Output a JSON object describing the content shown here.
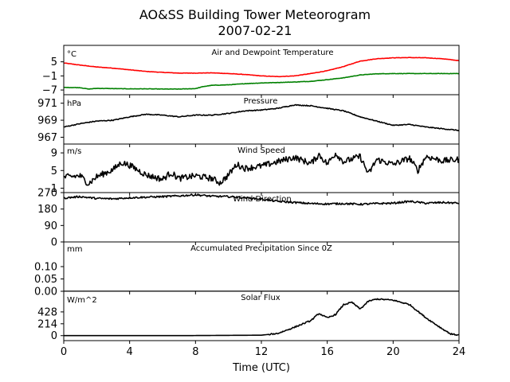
{
  "chart_data": {
    "title": "AO&SS Building Tower Meteorogram",
    "subtitle": "2007-02-21",
    "type": "line",
    "x": {
      "label": "Time (UTC)",
      "range": [
        0,
        24
      ],
      "ticks": [
        0,
        4,
        8,
        12,
        16,
        20,
        24
      ],
      "tick_labels": [
        "0",
        "4",
        "8",
        "12",
        "16",
        "20",
        "24"
      ]
    },
    "panels": [
      {
        "id": "temp",
        "title": "Air and Dewpoint Temperature",
        "unit": "°C",
        "ylim": [
          -9,
          12
        ],
        "yticks": [
          5,
          -1,
          -7
        ],
        "ytick_labels": [
          "5",
          "−1",
          "−7"
        ],
        "series": [
          {
            "name": "Air",
            "color": "#ff0000",
            "points": [
              [
                0,
                4.5
              ],
              [
                1,
                3.6
              ],
              [
                2,
                2.8
              ],
              [
                3,
                2.3
              ],
              [
                4,
                1.6
              ],
              [
                5,
                0.9
              ],
              [
                6,
                0.5
              ],
              [
                7,
                0.2
              ],
              [
                8,
                0.2
              ],
              [
                9,
                0.3
              ],
              [
                10,
                0.0
              ],
              [
                11,
                -0.4
              ],
              [
                12,
                -1.0
              ],
              [
                13,
                -1.3
              ],
              [
                14,
                -1.0
              ],
              [
                15,
                0.0
              ],
              [
                16,
                1.2
              ],
              [
                17,
                3.0
              ],
              [
                18,
                5.3
              ],
              [
                19,
                6.3
              ],
              [
                20,
                6.7
              ],
              [
                21,
                6.8
              ],
              [
                22,
                6.7
              ],
              [
                23,
                6.3
              ],
              [
                24,
                5.5
              ]
            ]
          },
          {
            "name": "Dewpoint",
            "color": "#008000",
            "points": [
              [
                0,
                -5.9
              ],
              [
                1,
                -6.0
              ],
              [
                1.5,
                -6.6
              ],
              [
                2,
                -6.3
              ],
              [
                3,
                -6.4
              ],
              [
                4,
                -6.5
              ],
              [
                5,
                -6.5
              ],
              [
                6,
                -6.6
              ],
              [
                7,
                -6.6
              ],
              [
                8,
                -6.4
              ],
              [
                8.5,
                -5.5
              ],
              [
                9,
                -5.0
              ],
              [
                10,
                -4.8
              ],
              [
                11,
                -4.3
              ],
              [
                12,
                -4.0
              ],
              [
                13,
                -3.8
              ],
              [
                14,
                -3.6
              ],
              [
                15,
                -3.3
              ],
              [
                16,
                -2.6
              ],
              [
                17,
                -1.8
              ],
              [
                18,
                -0.6
              ],
              [
                19,
                -0.1
              ],
              [
                20,
                0.0
              ],
              [
                21,
                0.0
              ],
              [
                22,
                0.0
              ],
              [
                23,
                0.0
              ],
              [
                24,
                0.0
              ]
            ]
          }
        ]
      },
      {
        "id": "pressure",
        "title": "Pressure",
        "unit": "hPa",
        "ylim": [
          966.2,
          972.0
        ],
        "yticks": [
          971,
          969,
          967
        ],
        "ytick_labels": [
          "971",
          "969",
          "967"
        ],
        "series": [
          {
            "name": "Pressure",
            "color": "#000000",
            "points": [
              [
                0,
                968.2
              ],
              [
                1,
                968.6
              ],
              [
                2,
                968.9
              ],
              [
                3,
                969.0
              ],
              [
                4,
                969.4
              ],
              [
                5,
                969.7
              ],
              [
                6,
                969.6
              ],
              [
                7,
                969.4
              ],
              [
                8,
                969.6
              ],
              [
                9,
                969.6
              ],
              [
                10,
                969.8
              ],
              [
                11,
                970.1
              ],
              [
                12,
                970.2
              ],
              [
                13,
                970.4
              ],
              [
                14,
                970.8
              ],
              [
                15,
                970.7
              ],
              [
                16,
                970.4
              ],
              [
                17,
                970.1
              ],
              [
                18,
                969.4
              ],
              [
                19,
                968.9
              ],
              [
                20,
                968.4
              ],
              [
                21,
                968.5
              ],
              [
                22,
                968.2
              ],
              [
                23,
                968.0
              ],
              [
                24,
                967.8
              ]
            ]
          }
        ]
      },
      {
        "id": "wind_speed",
        "title": "Wind Speed",
        "unit": "m/s",
        "ylim": [
          0,
          11
        ],
        "yticks": [
          9,
          5,
          1
        ],
        "ytick_labels": [
          "9",
          "5",
          "1"
        ],
        "series": [
          {
            "name": "Wind Speed",
            "color": "#000000",
            "points": [
              [
                0,
                3.5
              ],
              [
                1,
                3.8
              ],
              [
                1.5,
                2.0
              ],
              [
                2,
                3.6
              ],
              [
                3,
                5.2
              ],
              [
                3.5,
                6.8
              ],
              [
                4,
                6.2
              ],
              [
                5,
                4.0
              ],
              [
                6,
                3.0
              ],
              [
                6.5,
                4.5
              ],
              [
                7,
                3.2
              ],
              [
                8,
                3.8
              ],
              [
                9,
                3.2
              ],
              [
                9.5,
                2.2
              ],
              [
                10,
                4.0
              ],
              [
                10.5,
                6.4
              ],
              [
                11,
                5.5
              ],
              [
                12,
                6.0
              ],
              [
                13,
                7.0
              ],
              [
                14,
                8.0
              ],
              [
                15,
                6.6
              ],
              [
                15.5,
                8.6
              ],
              [
                16,
                6.5
              ],
              [
                16.5,
                8.9
              ],
              [
                17,
                7.0
              ],
              [
                18,
                8.2
              ],
              [
                18.5,
                4.2
              ],
              [
                19,
                7.5
              ],
              [
                20,
                6.4
              ],
              [
                21,
                7.8
              ],
              [
                21.5,
                5.0
              ],
              [
                22,
                8.2
              ],
              [
                23,
                7.2
              ],
              [
                24,
                7.5
              ]
            ]
          }
        ]
      },
      {
        "id": "wind_direction",
        "title": "Wind Direction",
        "unit": "",
        "ylim": [
          0,
          270
        ],
        "yticks": [
          270,
          180,
          90,
          0
        ],
        "ytick_labels": [
          "270",
          "180",
          "90",
          "0"
        ],
        "series": [
          {
            "name": "Wind Direction",
            "color": "#000000",
            "points": [
              [
                0,
                240
              ],
              [
                1,
                248
              ],
              [
                2,
                238
              ],
              [
                3,
                236
              ],
              [
                4,
                242
              ],
              [
                5,
                245
              ],
              [
                6,
                248
              ],
              [
                7,
                252
              ],
              [
                8,
                258
              ],
              [
                9,
                250
              ],
              [
                10,
                248
              ],
              [
                11,
                242
              ],
              [
                12,
                234
              ],
              [
                13,
                222
              ],
              [
                14,
                216
              ],
              [
                15,
                210
              ],
              [
                16,
                208
              ],
              [
                17,
                210
              ],
              [
                18,
                206
              ],
              [
                19,
                210
              ],
              [
                20,
                212
              ],
              [
                21,
                222
              ],
              [
                22,
                212
              ],
              [
                23,
                216
              ],
              [
                24,
                212
              ]
            ]
          }
        ]
      },
      {
        "id": "precip",
        "title": "Accumulated Precipitation Since 0Z",
        "unit": "mm",
        "ylim": [
          0,
          0.2
        ],
        "yticks": [
          0.1,
          0.05,
          0.0
        ],
        "ytick_labels": [
          "0.10",
          "0.05",
          "0.00"
        ],
        "series": [
          {
            "name": "Precipitation",
            "color": "#000000",
            "points": [
              [
                0,
                0.0
              ],
              [
                24,
                0.0
              ]
            ]
          }
        ]
      },
      {
        "id": "solar",
        "title": "Solar Flux",
        "unit": "W/m^2",
        "ylim": [
          -90,
          800
        ],
        "yticks": [
          428,
          214,
          0
        ],
        "ytick_labels": [
          "428",
          "214",
          "0"
        ],
        "series": [
          {
            "name": "Solar Flux",
            "color": "#000000",
            "points": [
              [
                0,
                0
              ],
              [
                7,
                0
              ],
              [
                12,
                8
              ],
              [
                13,
                40
              ],
              [
                14,
                150
              ],
              [
                15,
                270
              ],
              [
                15.5,
                400
              ],
              [
                16,
                320
              ],
              [
                16.5,
                380
              ],
              [
                17,
                560
              ],
              [
                17.5,
                600
              ],
              [
                18,
                480
              ],
              [
                18.5,
                620
              ],
              [
                19,
                660
              ],
              [
                20,
                640
              ],
              [
                21,
                560
              ],
              [
                21.5,
                440
              ],
              [
                22,
                320
              ],
              [
                23,
                120
              ],
              [
                23.5,
                30
              ],
              [
                24,
                10
              ]
            ]
          }
        ]
      }
    ]
  }
}
